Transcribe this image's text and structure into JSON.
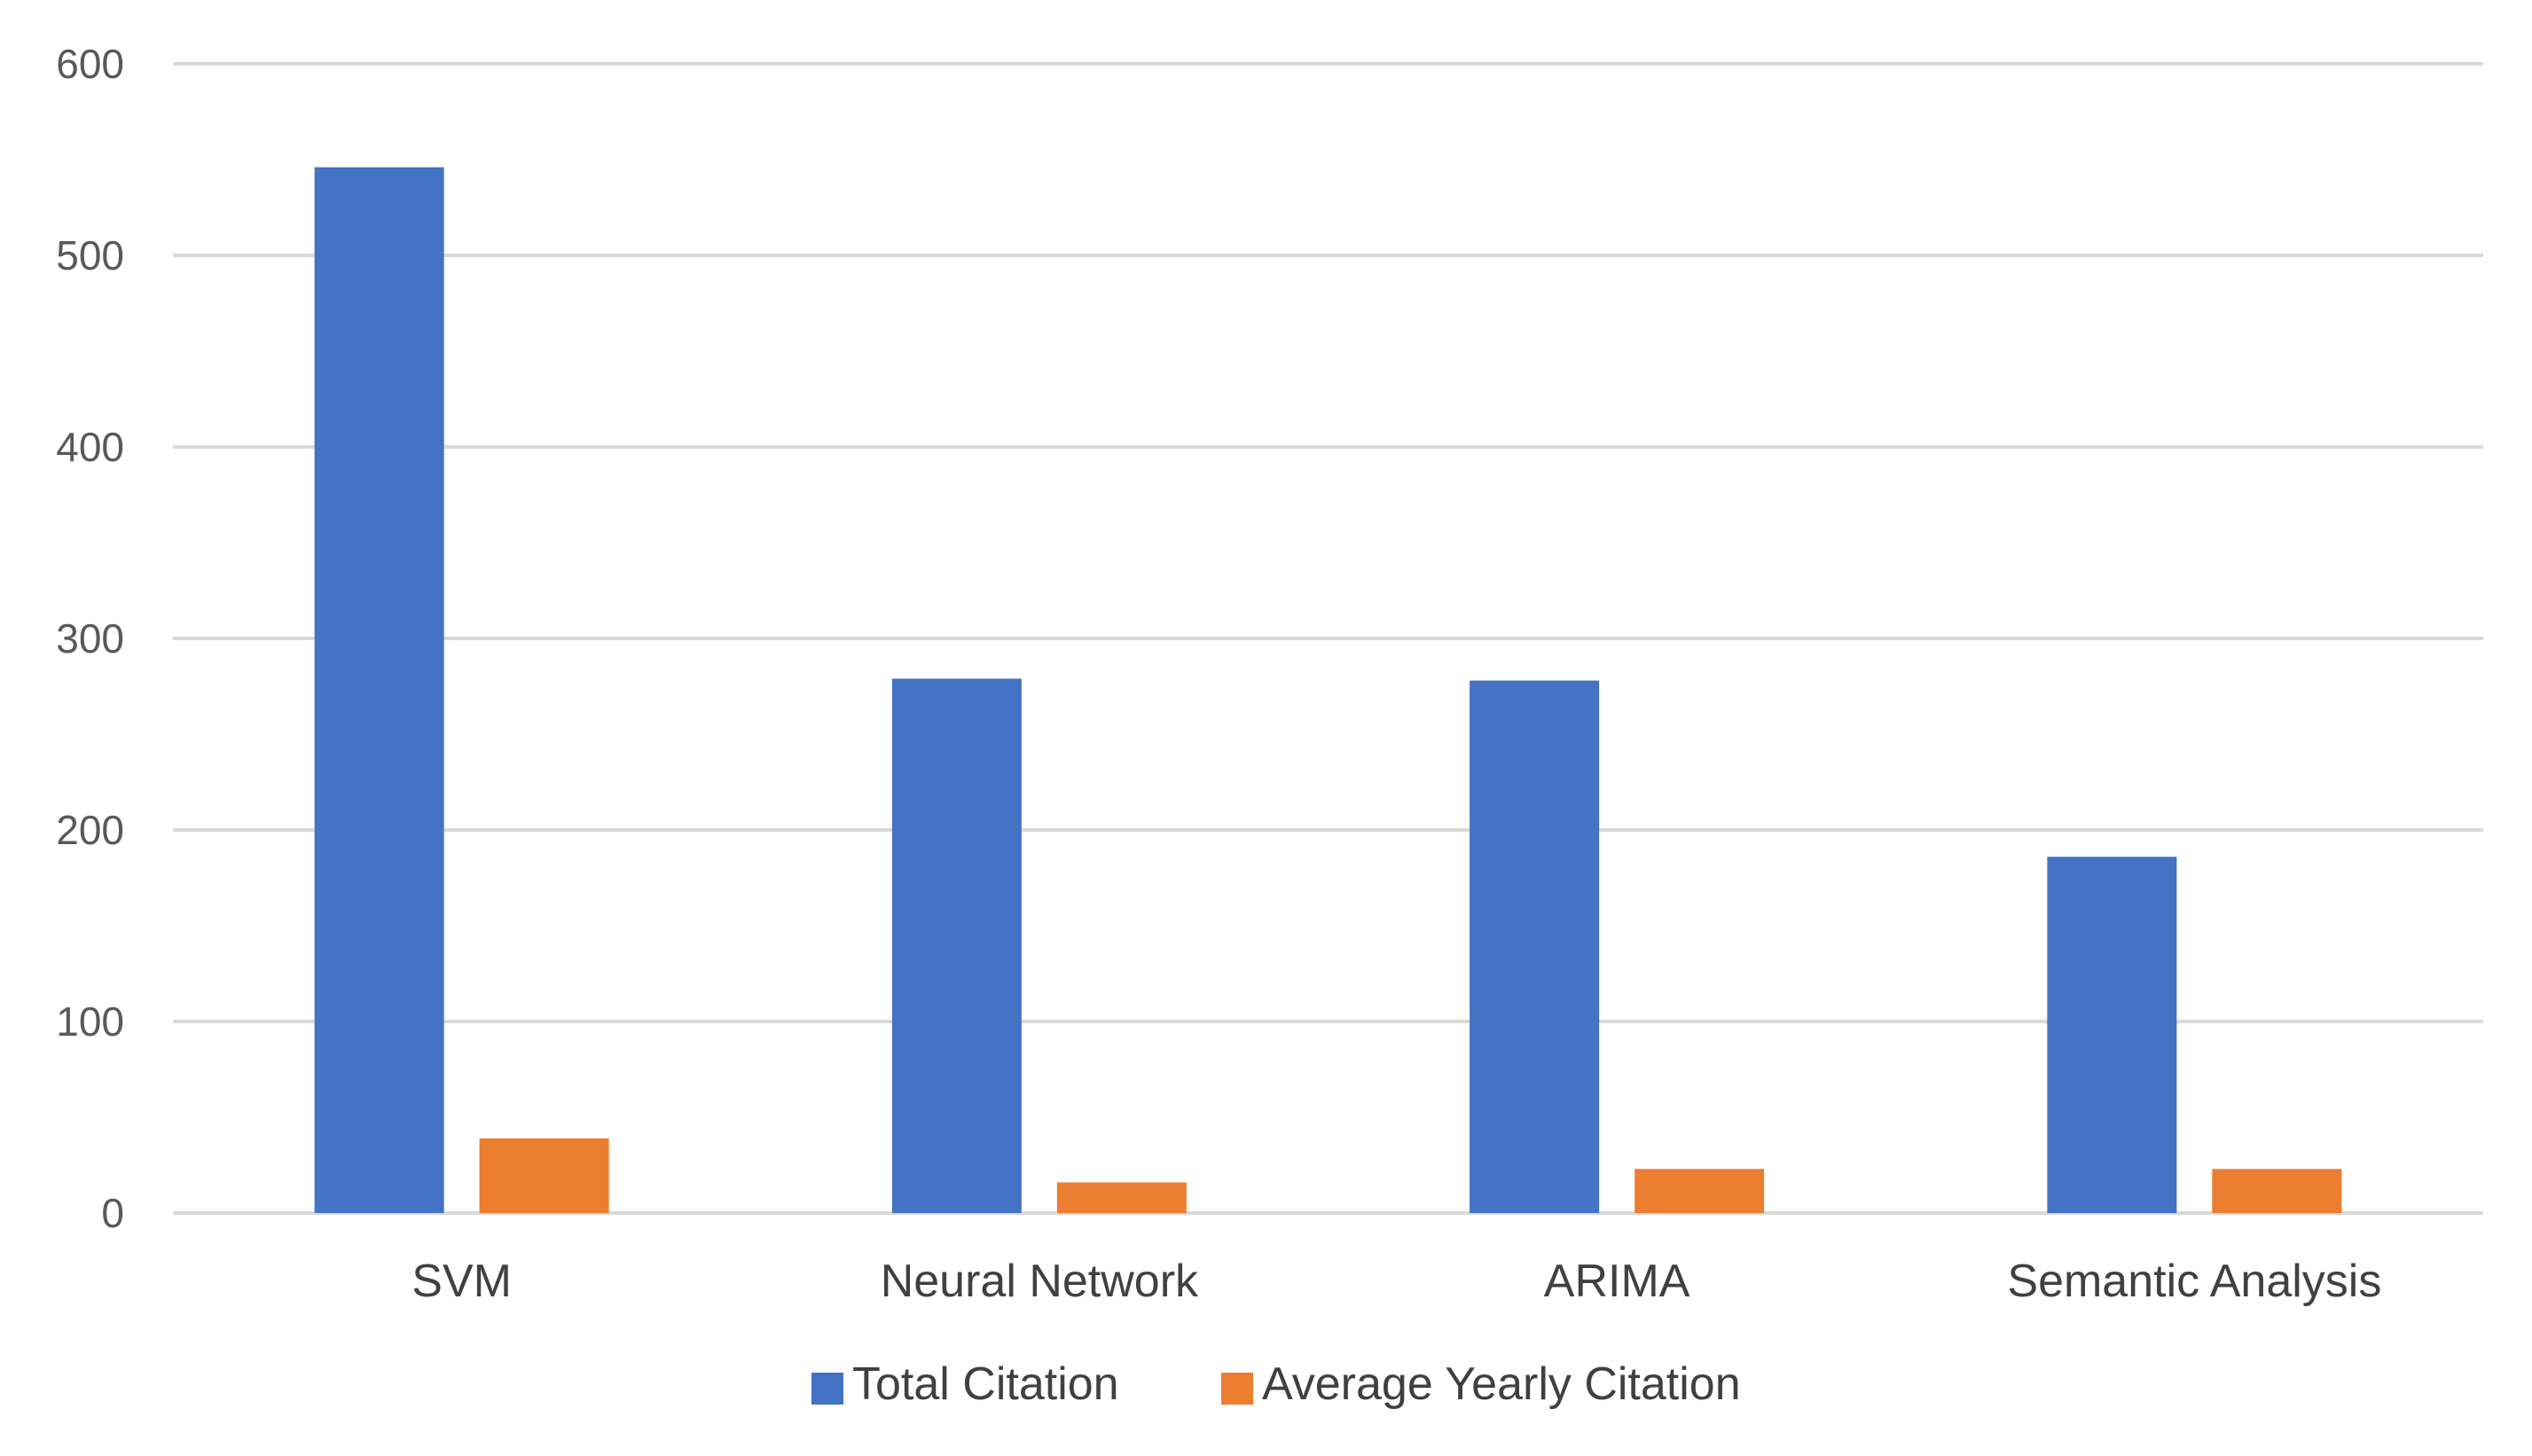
{
  "chart_data": {
    "type": "bar",
    "title": "",
    "xlabel": "",
    "ylabel": "",
    "categories": [
      "SVM",
      "Neural Network",
      "ARIMA",
      "Semantic Analysis"
    ],
    "series": [
      {
        "name": "Total Citation",
        "values": [
          546,
          279,
          278,
          186
        ],
        "color": "#4472c4"
      },
      {
        "name": "Average Yearly Citation",
        "values": [
          39,
          16,
          23,
          23
        ],
        "color": "#ed7d31"
      }
    ],
    "ylim": [
      0,
      600
    ],
    "yticks": [
      0,
      100,
      200,
      300,
      400,
      500,
      600
    ],
    "grid": true,
    "legend_position": "bottom-center"
  }
}
